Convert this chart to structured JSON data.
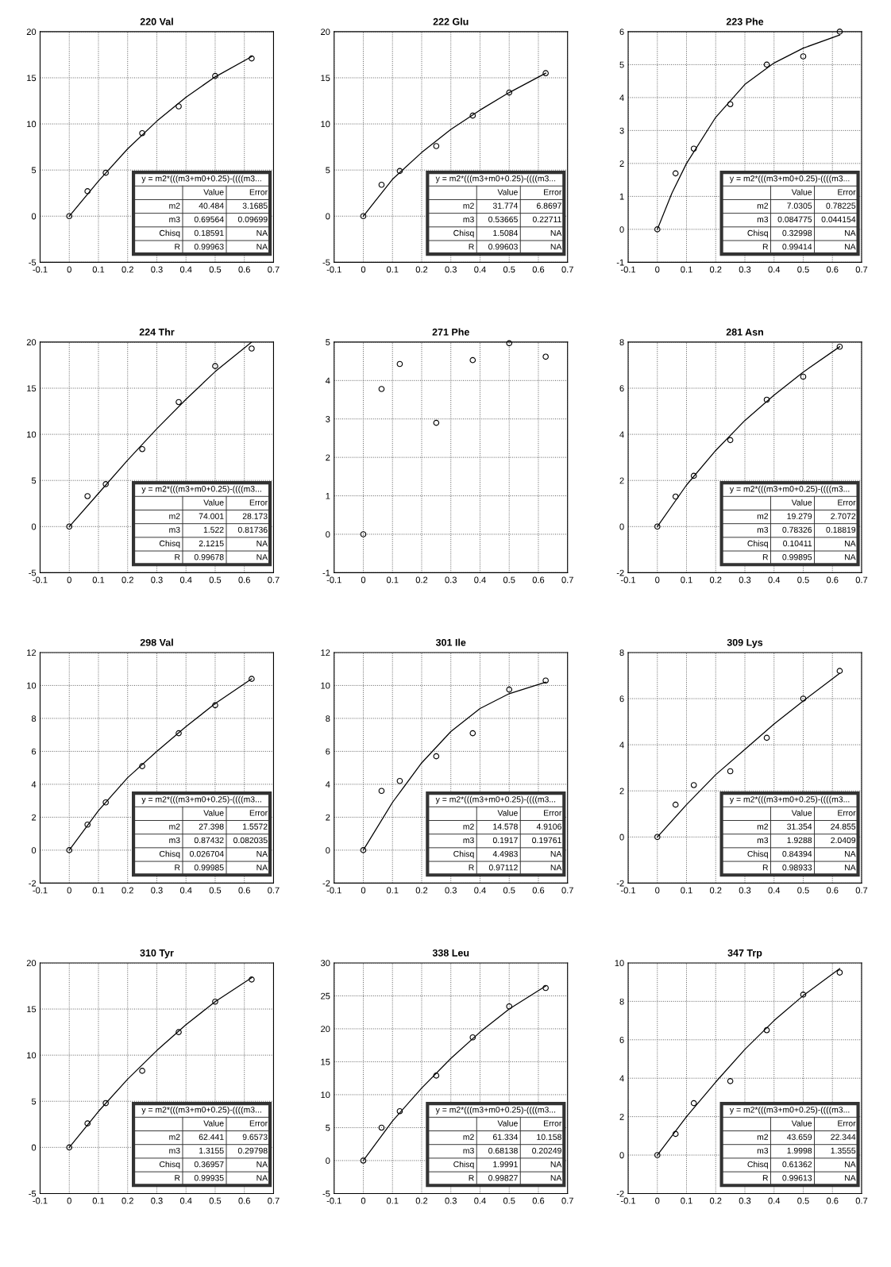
{
  "chart_data": [
    {
      "type": "scatter",
      "title": "220 Val",
      "x": [
        0,
        0.0625,
        0.125,
        0.25,
        0.375,
        0.5,
        0.625
      ],
      "xlim": [
        -0.1,
        0.7
      ],
      "xticks": [
        -0.1,
        0,
        0.1,
        0.2,
        0.3,
        0.4,
        0.5,
        0.6,
        0.7
      ],
      "ylim": [
        -5,
        20
      ],
      "yticks": [
        -5,
        0,
        5,
        10,
        15,
        20
      ],
      "grid": true,
      "series": [
        {
          "color": "#000000",
          "marker": "circle",
          "values": [
            0,
            2.7,
            4.7,
            9.0,
            11.9,
            15.2,
            17.1
          ]
        },
        {
          "type": "line",
          "color": "#000000",
          "line_style": "solid",
          "x": [
            0,
            0.1,
            0.2,
            0.3,
            0.4,
            0.5,
            0.625
          ],
          "values": [
            0,
            3.8,
            7.3,
            10.3,
            12.9,
            15.1,
            17.3
          ]
        }
      ],
      "annotations": [
        "y = m2*(((m3+m0+0.25)-((((m3...",
        "Value",
        "Error",
        "m2",
        "40.484",
        "3.1685",
        "m3",
        "0.69564",
        "0.09699",
        "Chisq",
        "0.18591",
        "NA",
        "R",
        "0.99963",
        "NA"
      ]
    },
    {
      "type": "scatter",
      "title": "222 Glu",
      "x": [
        0,
        0.0625,
        0.125,
        0.25,
        0.375,
        0.5,
        0.625
      ],
      "xlim": [
        -0.1,
        0.7
      ],
      "xticks": [
        -0.1,
        0,
        0.1,
        0.2,
        0.3,
        0.4,
        0.5,
        0.6,
        0.7
      ],
      "ylim": [
        -5,
        20
      ],
      "yticks": [
        -5,
        0,
        5,
        10,
        15,
        20
      ],
      "grid": true,
      "series": [
        {
          "color": "#000000",
          "marker": "circle",
          "values": [
            0,
            3.4,
            4.9,
            7.6,
            10.9,
            13.4,
            15.5
          ]
        },
        {
          "type": "line",
          "color": "#000000",
          "line_style": "solid",
          "x": [
            0,
            0.1,
            0.2,
            0.3,
            0.4,
            0.5,
            0.625
          ],
          "values": [
            0,
            4.0,
            6.9,
            9.4,
            11.5,
            13.4,
            15.5
          ]
        }
      ],
      "annotations": [
        "y = m2*(((m3+m0+0.25)-((((m3...",
        "Value",
        "Error",
        "m2",
        "31.774",
        "6.8697",
        "m3",
        "0.53665",
        "0.22711",
        "Chisq",
        "1.5084",
        "NA",
        "R",
        "0.99603",
        "NA"
      ]
    },
    {
      "type": "scatter",
      "title": "223 Phe",
      "x": [
        0,
        0.0625,
        0.125,
        0.25,
        0.375,
        0.5,
        0.625
      ],
      "xlim": [
        -0.1,
        0.7
      ],
      "xticks": [
        -0.1,
        0,
        0.1,
        0.2,
        0.3,
        0.4,
        0.5,
        0.6,
        0.7
      ],
      "ylim": [
        -1,
        6
      ],
      "yticks": [
        -1,
        0,
        1,
        2,
        3,
        4,
        5,
        6
      ],
      "grid": true,
      "series": [
        {
          "color": "#000000",
          "marker": "circle",
          "values": [
            0,
            1.7,
            2.45,
            3.8,
            5.0,
            5.25,
            6.0
          ]
        },
        {
          "type": "line",
          "color": "#000000",
          "line_style": "solid",
          "x": [
            0,
            0.05,
            0.1,
            0.2,
            0.3,
            0.4,
            0.5,
            0.625
          ],
          "values": [
            0,
            1.1,
            2.0,
            3.4,
            4.4,
            5.05,
            5.5,
            5.9
          ]
        }
      ],
      "annotations": [
        "y = m2*(((m3+m0+0.25)-((((m3...",
        "Value",
        "Error",
        "m2",
        "7.0305",
        "0.78225",
        "m3",
        "0.084775",
        "0.044154",
        "Chisq",
        "0.32998",
        "NA",
        "R",
        "0.99414",
        "NA"
      ]
    },
    {
      "type": "scatter",
      "title": "224 Thr",
      "x": [
        0,
        0.0625,
        0.125,
        0.25,
        0.375,
        0.5,
        0.625
      ],
      "xlim": [
        -0.1,
        0.7
      ],
      "xticks": [
        -0.1,
        0,
        0.1,
        0.2,
        0.3,
        0.4,
        0.5,
        0.6,
        0.7
      ],
      "ylim": [
        -5,
        20
      ],
      "yticks": [
        -5,
        0,
        5,
        10,
        15,
        20
      ],
      "grid": true,
      "series": [
        {
          "color": "#000000",
          "marker": "circle",
          "values": [
            0,
            3.3,
            4.6,
            8.4,
            13.5,
            17.4,
            19.3
          ]
        },
        {
          "type": "line",
          "color": "#000000",
          "line_style": "solid",
          "x": [
            0,
            0.1,
            0.2,
            0.3,
            0.4,
            0.5,
            0.625
          ],
          "values": [
            0,
            3.6,
            7.2,
            10.6,
            13.8,
            16.8,
            20
          ]
        }
      ],
      "annotations": [
        "y = m2*(((m3+m0+0.25)-((((m3...",
        "Value",
        "Error",
        "m2",
        "74.001",
        "28.173",
        "m3",
        "1.522",
        "0.81736",
        "Chisq",
        "2.1215",
        "NA",
        "R",
        "0.99678",
        "NA"
      ]
    },
    {
      "type": "scatter",
      "title": "271 Phe",
      "x": [
        0,
        0.0625,
        0.125,
        0.25,
        0.375,
        0.5,
        0.625
      ],
      "xlim": [
        -0.1,
        0.7
      ],
      "xticks": [
        -0.1,
        0,
        0.1,
        0.2,
        0.3,
        0.4,
        0.5,
        0.6,
        0.7
      ],
      "ylim": [
        -1,
        5
      ],
      "yticks": [
        -1,
        0,
        1,
        2,
        3,
        4,
        5
      ],
      "grid": true,
      "series": [
        {
          "color": "#000000",
          "marker": "circle",
          "values": [
            0,
            3.78,
            4.43,
            2.9,
            4.53,
            4.97,
            4.62
          ]
        }
      ]
    },
    {
      "type": "scatter",
      "title": "281 Asn",
      "x": [
        0,
        0.0625,
        0.125,
        0.25,
        0.375,
        0.5,
        0.625
      ],
      "xlim": [
        -0.1,
        0.7
      ],
      "xticks": [
        -0.1,
        0,
        0.1,
        0.2,
        0.3,
        0.4,
        0.5,
        0.6,
        0.7
      ],
      "ylim": [
        -2,
        8
      ],
      "yticks": [
        -2,
        0,
        2,
        4,
        6,
        8
      ],
      "grid": true,
      "series": [
        {
          "color": "#000000",
          "marker": "circle",
          "values": [
            0,
            1.3,
            2.2,
            3.75,
            5.5,
            6.5,
            7.8
          ]
        },
        {
          "type": "line",
          "color": "#000000",
          "line_style": "solid",
          "x": [
            0,
            0.1,
            0.2,
            0.3,
            0.4,
            0.5,
            0.625
          ],
          "values": [
            0,
            1.8,
            3.3,
            4.6,
            5.7,
            6.7,
            7.8
          ]
        }
      ],
      "annotations": [
        "y = m2*(((m3+m0+0.25)-((((m3...",
        "Value",
        "Error",
        "m2",
        "19.279",
        "2.7072",
        "m3",
        "0.78326",
        "0.18819",
        "Chisq",
        "0.10411",
        "NA",
        "R",
        "0.99895",
        "NA"
      ]
    },
    {
      "type": "scatter",
      "title": "298 Val",
      "x": [
        0,
        0.0625,
        0.125,
        0.25,
        0.375,
        0.5,
        0.625
      ],
      "xlim": [
        -0.1,
        0.7
      ],
      "xticks": [
        -0.1,
        0,
        0.1,
        0.2,
        0.3,
        0.4,
        0.5,
        0.6,
        0.7
      ],
      "ylim": [
        -2,
        12
      ],
      "yticks": [
        -2,
        0,
        2,
        4,
        6,
        8,
        10,
        12
      ],
      "grid": true,
      "series": [
        {
          "color": "#000000",
          "marker": "circle",
          "values": [
            0,
            1.55,
            2.9,
            5.1,
            7.1,
            8.8,
            10.4
          ]
        },
        {
          "type": "line",
          "color": "#000000",
          "line_style": "solid",
          "x": [
            0,
            0.1,
            0.2,
            0.3,
            0.4,
            0.5,
            0.625
          ],
          "values": [
            0,
            2.4,
            4.4,
            6.0,
            7.5,
            8.9,
            10.4
          ]
        }
      ],
      "annotations": [
        "y = m2*(((m3+m0+0.25)-((((m3...",
        "Value",
        "Error",
        "m2",
        "27.398",
        "1.5572",
        "m3",
        "0.87432",
        "0.082035",
        "Chisq",
        "0.026704",
        "NA",
        "R",
        "0.99985",
        "NA"
      ]
    },
    {
      "type": "scatter",
      "title": "301 Ile",
      "x": [
        0,
        0.0625,
        0.125,
        0.25,
        0.375,
        0.5,
        0.625
      ],
      "xlim": [
        -0.1,
        0.7
      ],
      "xticks": [
        -0.1,
        0,
        0.1,
        0.2,
        0.3,
        0.4,
        0.5,
        0.6,
        0.7
      ],
      "ylim": [
        -2,
        12
      ],
      "yticks": [
        -2,
        0,
        2,
        4,
        6,
        8,
        10,
        12
      ],
      "grid": true,
      "series": [
        {
          "color": "#000000",
          "marker": "circle",
          "values": [
            0,
            3.6,
            4.2,
            5.7,
            7.1,
            9.75,
            10.3
          ]
        },
        {
          "type": "line",
          "color": "#000000",
          "line_style": "solid",
          "x": [
            0,
            0.1,
            0.2,
            0.3,
            0.4,
            0.5,
            0.625
          ],
          "values": [
            0,
            2.9,
            5.3,
            7.2,
            8.6,
            9.5,
            10.2
          ]
        }
      ],
      "annotations": [
        "y = m2*(((m3+m0+0.25)-((((m3...",
        "Value",
        "Error",
        "m2",
        "14.578",
        "4.9106",
        "m3",
        "0.1917",
        "0.19761",
        "Chisq",
        "4.4983",
        "NA",
        "R",
        "0.97112",
        "NA"
      ]
    },
    {
      "type": "scatter",
      "title": "309 Lys",
      "x": [
        0,
        0.0625,
        0.125,
        0.25,
        0.375,
        0.5,
        0.625
      ],
      "xlim": [
        -0.1,
        0.7
      ],
      "xticks": [
        -0.1,
        0,
        0.1,
        0.2,
        0.3,
        0.4,
        0.5,
        0.6,
        0.7
      ],
      "ylim": [
        -2,
        8
      ],
      "yticks": [
        -2,
        0,
        2,
        4,
        6,
        8
      ],
      "grid": true,
      "series": [
        {
          "color": "#000000",
          "marker": "circle",
          "values": [
            0,
            1.4,
            2.25,
            2.85,
            4.3,
            6.0,
            7.2
          ]
        },
        {
          "type": "line",
          "color": "#000000",
          "line_style": "solid",
          "x": [
            0,
            0.1,
            0.2,
            0.3,
            0.4,
            0.5,
            0.625
          ],
          "values": [
            0,
            1.4,
            2.7,
            3.8,
            4.9,
            5.9,
            7.1
          ]
        }
      ],
      "annotations": [
        "y = m2*(((m3+m0+0.25)-((((m3...",
        "Value",
        "Error",
        "m2",
        "31.354",
        "24.855",
        "m3",
        "1.9288",
        "2.0409",
        "Chisq",
        "0.84394",
        "NA",
        "R",
        "0.98933",
        "NA"
      ]
    },
    {
      "type": "scatter",
      "title": "310 Tyr",
      "x": [
        0,
        0.0625,
        0.125,
        0.25,
        0.375,
        0.5,
        0.625
      ],
      "xlim": [
        -0.1,
        0.7
      ],
      "xticks": [
        -0.1,
        0,
        0.1,
        0.2,
        0.3,
        0.4,
        0.5,
        0.6,
        0.7
      ],
      "ylim": [
        -5,
        20
      ],
      "yticks": [
        -5,
        0,
        5,
        10,
        15,
        20
      ],
      "grid": true,
      "series": [
        {
          "color": "#000000",
          "marker": "circle",
          "values": [
            0,
            2.6,
            4.8,
            8.3,
            12.5,
            15.8,
            18.2
          ]
        },
        {
          "type": "line",
          "color": "#000000",
          "line_style": "solid",
          "x": [
            0,
            0.1,
            0.2,
            0.3,
            0.4,
            0.5,
            0.625
          ],
          "values": [
            0,
            3.9,
            7.4,
            10.5,
            13.3,
            15.8,
            18.4
          ]
        }
      ],
      "annotations": [
        "y = m2*(((m3+m0+0.25)-((((m3...",
        "Value",
        "Error",
        "m2",
        "62.441",
        "9.6573",
        "m3",
        "1.3155",
        "0.29798",
        "Chisq",
        "0.36957",
        "NA",
        "R",
        "0.99935",
        "NA"
      ]
    },
    {
      "type": "scatter",
      "title": "338 Leu",
      "x": [
        0,
        0.0625,
        0.125,
        0.25,
        0.375,
        0.5,
        0.625
      ],
      "xlim": [
        -0.1,
        0.7
      ],
      "xticks": [
        -0.1,
        0,
        0.1,
        0.2,
        0.3,
        0.4,
        0.5,
        0.6,
        0.7
      ],
      "ylim": [
        -5,
        30
      ],
      "yticks": [
        -5,
        0,
        5,
        10,
        15,
        20,
        25,
        30
      ],
      "grid": true,
      "series": [
        {
          "color": "#000000",
          "marker": "circle",
          "values": [
            0,
            5.0,
            7.5,
            12.9,
            18.7,
            23.4,
            26.2
          ]
        },
        {
          "type": "line",
          "color": "#000000",
          "line_style": "solid",
          "x": [
            0,
            0.1,
            0.2,
            0.3,
            0.4,
            0.5,
            0.625
          ],
          "values": [
            0,
            6.0,
            11.0,
            15.5,
            19.5,
            23.0,
            26.5
          ]
        }
      ],
      "annotations": [
        "y = m2*(((m3+m0+0.25)-((((m3...",
        "Value",
        "Error",
        "m2",
        "61.334",
        "10.158",
        "m3",
        "0.68138",
        "0.20249",
        "Chisq",
        "1.9991",
        "NA",
        "R",
        "0.99827",
        "NA"
      ]
    },
    {
      "type": "scatter",
      "title": "347 Trp",
      "x": [
        0,
        0.0625,
        0.125,
        0.25,
        0.375,
        0.5,
        0.625
      ],
      "xlim": [
        -0.1,
        0.7
      ],
      "xticks": [
        -0.1,
        0,
        0.1,
        0.2,
        0.3,
        0.4,
        0.5,
        0.6,
        0.7
      ],
      "ylim": [
        -2,
        10
      ],
      "yticks": [
        -2,
        0,
        2,
        4,
        6,
        8,
        10
      ],
      "grid": true,
      "series": [
        {
          "color": "#000000",
          "marker": "circle",
          "values": [
            0,
            1.1,
            2.7,
            3.85,
            6.5,
            8.35,
            9.5
          ]
        },
        {
          "type": "line",
          "color": "#000000",
          "line_style": "solid",
          "x": [
            0,
            0.1,
            0.2,
            0.3,
            0.4,
            0.5,
            0.625
          ],
          "values": [
            0,
            2.0,
            3.8,
            5.5,
            7.0,
            8.3,
            9.7
          ]
        }
      ],
      "annotations": [
        "y = m2*(((m3+m0+0.25)-((((m3...",
        "Value",
        "Error",
        "m2",
        "43.659",
        "22.344",
        "m3",
        "1.9998",
        "1.3555",
        "Chisq",
        "0.61362",
        "NA",
        "R",
        "0.99613",
        "NA"
      ]
    }
  ]
}
